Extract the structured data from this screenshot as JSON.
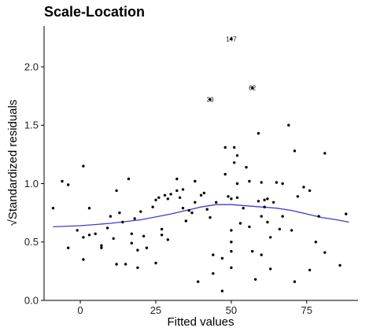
{
  "chart_data": {
    "type": "scatter",
    "title": "Scale-Location",
    "xlabel": "Fitted values",
    "ylabel": "√Standardized residuals",
    "xlim": [
      -12,
      92
    ],
    "ylim": [
      0,
      2.35
    ],
    "x_ticks": [
      0,
      25,
      50,
      75
    ],
    "y_ticks": [
      0.0,
      0.5,
      1.0,
      1.5,
      2.0
    ],
    "y_tick_labels": [
      "0.0",
      "0.5",
      "1.0",
      "1.5",
      "2.0"
    ],
    "grid": false,
    "colors": {
      "points": "#000000",
      "smooth": "#3a3fd1",
      "axis": "#000000"
    },
    "points": [
      [
        -9,
        0.79
      ],
      [
        -6,
        1.02
      ],
      [
        -4,
        0.99
      ],
      [
        -4,
        0.45
      ],
      [
        -1,
        0.6
      ],
      [
        1,
        0.35
      ],
      [
        1,
        1.15
      ],
      [
        1,
        0.54
      ],
      [
        3,
        0.79
      ],
      [
        3,
        0.56
      ],
      [
        5,
        0.57
      ],
      [
        7,
        0.47
      ],
      [
        7,
        0.45
      ],
      [
        9,
        0.62
      ],
      [
        10,
        0.72
      ],
      [
        11,
        0.53
      ],
      [
        12,
        0.94
      ],
      [
        12,
        0.31
      ],
      [
        13,
        0.75
      ],
      [
        14,
        0.67
      ],
      [
        15,
        0.31
      ],
      [
        16,
        1.04
      ],
      [
        17,
        0.57
      ],
      [
        17,
        0.49
      ],
      [
        18,
        0.7
      ],
      [
        19,
        0.43
      ],
      [
        19,
        0.28
      ],
      [
        20,
        0.76
      ],
      [
        21,
        0.55
      ],
      [
        22,
        0.45
      ],
      [
        24,
        0.8
      ],
      [
        25,
        0.86
      ],
      [
        25,
        0.32
      ],
      [
        26,
        0.88
      ],
      [
        27,
        0.56
      ],
      [
        27,
        0.61
      ],
      [
        28,
        0.9
      ],
      [
        29,
        0.87
      ],
      [
        29,
        0.52
      ],
      [
        30,
        0.91
      ],
      [
        32,
        0.94
      ],
      [
        32,
        1.04
      ],
      [
        33,
        0.88
      ],
      [
        34,
        0.79
      ],
      [
        34,
        0.95
      ],
      [
        35,
        0.68
      ],
      [
        36,
        0.77
      ],
      [
        37,
        0.75
      ],
      [
        38,
        0.84
      ],
      [
        38,
        1.02
      ],
      [
        39,
        0.16
      ],
      [
        40,
        0.9
      ],
      [
        41,
        0.92
      ],
      [
        42,
        0.78
      ],
      [
        43,
        0.71
      ],
      [
        44,
        0.39
      ],
      [
        44,
        0.23
      ],
      [
        45,
        0.84
      ],
      [
        47,
        0.08
      ],
      [
        47,
        0.36
      ],
      [
        48,
        1.31
      ],
      [
        48,
        1.08
      ],
      [
        49,
        0.89
      ],
      [
        50,
        0.6
      ],
      [
        50,
        0.42
      ],
      [
        50,
        0.5
      ],
      [
        50,
        0.28
      ],
      [
        50,
        0.87
      ],
      [
        51,
        1.31
      ],
      [
        51,
        1.18
      ],
      [
        52,
        0.88
      ],
      [
        52,
        1.24
      ],
      [
        52,
        1.0
      ],
      [
        53,
        0.66
      ],
      [
        54,
        0.79
      ],
      [
        55,
        1.14
      ],
      [
        56,
        1.02
      ],
      [
        56,
        0.63
      ],
      [
        57,
        0.42
      ],
      [
        58,
        0.18
      ],
      [
        59,
        0.85
      ],
      [
        59,
        1.43
      ],
      [
        60,
        0.39
      ],
      [
        60,
        0.72
      ],
      [
        60,
        1.01
      ],
      [
        61,
        0.8
      ],
      [
        61,
        0.86
      ],
      [
        62,
        0.67
      ],
      [
        62,
        0.87
      ],
      [
        63,
        0.27
      ],
      [
        63,
        0.54
      ],
      [
        64,
        0.84
      ],
      [
        65,
        1.01
      ],
      [
        66,
        0.61
      ],
      [
        67,
        0.72
      ],
      [
        67,
        1.0
      ],
      [
        69,
        1.5
      ],
      [
        70,
        0.6
      ],
      [
        71,
        1.28
      ],
      [
        71,
        0.16
      ],
      [
        72,
        0.89
      ],
      [
        74,
        0.97
      ],
      [
        76,
        0.26
      ],
      [
        76,
        0.94
      ],
      [
        78,
        0.5
      ],
      [
        79,
        0.72
      ],
      [
        81,
        0.41
      ],
      [
        81,
        1.26
      ],
      [
        86,
        0.3
      ],
      [
        88,
        0.74
      ]
    ],
    "labeled_points": [
      {
        "label": "147",
        "x": 50,
        "y": 2.24
      },
      {
        "label": "62",
        "x": 57,
        "y": 1.82
      },
      {
        "label": "30",
        "x": 43,
        "y": 1.72
      }
    ],
    "smooth_line": {
      "x": [
        -9,
        0,
        10,
        20,
        30,
        40,
        45,
        50,
        55,
        60,
        65,
        70,
        75,
        80,
        85,
        89
      ],
      "y": [
        0.63,
        0.64,
        0.66,
        0.69,
        0.74,
        0.8,
        0.82,
        0.82,
        0.81,
        0.8,
        0.79,
        0.77,
        0.74,
        0.71,
        0.69,
        0.67
      ]
    }
  }
}
